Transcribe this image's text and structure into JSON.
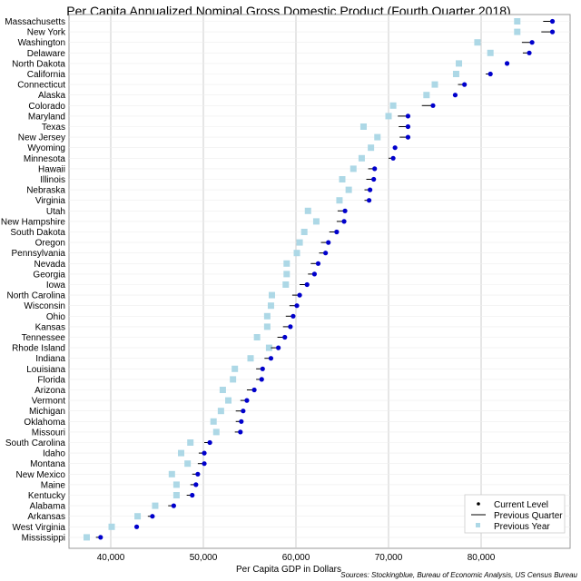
{
  "chart_data": {
    "type": "scatter",
    "title": "Per Capita Annualized Nominal Gross Domestic Product (Fourth Quarter 2018)",
    "xlabel": "Per Capita GDP in Dollars",
    "source": "Sources: Stockingblue, Bureau of Economic Analysis, US Census Bureau",
    "xlim": [
      35000,
      90000
    ],
    "x_ticks": [
      40000,
      50000,
      60000,
      70000,
      80000
    ],
    "x_tick_labels": [
      "40,000",
      "50,000",
      "60,000",
      "70,000",
      "80,000"
    ],
    "grid": true,
    "legend_position": "bottom-right",
    "legend": [
      "Current Level",
      "Previous Quarter",
      "Previous Year"
    ],
    "colors": {
      "current": "#0000cc",
      "previous_year": "#add8e6",
      "previous_quarter": "#000000"
    },
    "states": [
      "Massachusetts",
      "New York",
      "Washington",
      "Delaware",
      "North Dakota",
      "California",
      "Connecticut",
      "Alaska",
      "Colorado",
      "Maryland",
      "Texas",
      "New Jersey",
      "Wyoming",
      "Minnesota",
      "Hawaii",
      "Illinois",
      "Nebraska",
      "Virginia",
      "Utah",
      "New Hampshire",
      "South Dakota",
      "Oregon",
      "Pennsylvania",
      "Nevada",
      "Georgia",
      "Iowa",
      "North Carolina",
      "Wisconsin",
      "Ohio",
      "Kansas",
      "Tennessee",
      "Rhode Island",
      "Indiana",
      "Louisiana",
      "Florida",
      "Arizona",
      "Vermont",
      "Michigan",
      "Oklahoma",
      "Missouri",
      "South Carolina",
      "Idaho",
      "Montana",
      "New Mexico",
      "Maine",
      "Kentucky",
      "Alabama",
      "Arkansas",
      "West Virginia",
      "Mississippi"
    ],
    "series": [
      {
        "name": "Current Level",
        "values": [
          87700,
          87700,
          85500,
          85200,
          82800,
          81000,
          78200,
          77200,
          74800,
          72100,
          72100,
          72100,
          70700,
          70500,
          68500,
          68400,
          68000,
          67900,
          65300,
          65200,
          64400,
          63500,
          63200,
          62400,
          62000,
          61200,
          60400,
          60100,
          59700,
          59400,
          58800,
          58100,
          57300,
          56400,
          56300,
          55500,
          54700,
          54300,
          54100,
          54000,
          50700,
          50100,
          50100,
          49400,
          49200,
          48800,
          46800,
          44500,
          42800,
          38900
        ]
      },
      {
        "name": "Previous Quarter",
        "values": [
          86700,
          86500,
          84400,
          84500,
          82800,
          80500,
          77500,
          77200,
          73600,
          71000,
          71100,
          71200,
          70600,
          70000,
          67800,
          67600,
          67400,
          67400,
          64500,
          64400,
          63600,
          62700,
          62500,
          61600,
          61300,
          60400,
          59600,
          59300,
          58900,
          58600,
          58000,
          57300,
          56600,
          55700,
          55700,
          54700,
          54000,
          53500,
          53500,
          53400,
          50100,
          49500,
          49400,
          48800,
          48600,
          48200,
          46200,
          44000,
          42800,
          38400
        ]
      },
      {
        "name": "Previous Year",
        "values": [
          83900,
          83900,
          79600,
          81000,
          77600,
          77300,
          75000,
          74100,
          70500,
          70000,
          67300,
          68800,
          68100,
          67100,
          66200,
          65000,
          65700,
          64700,
          61300,
          62200,
          60900,
          60400,
          60100,
          59000,
          59000,
          58900,
          57400,
          57300,
          56900,
          56900,
          55800,
          57100,
          55100,
          53400,
          53200,
          52100,
          52700,
          51900,
          51100,
          51400,
          48600,
          47600,
          48300,
          46600,
          47100,
          47100,
          44800,
          42900,
          40100,
          37400
        ]
      }
    ]
  }
}
